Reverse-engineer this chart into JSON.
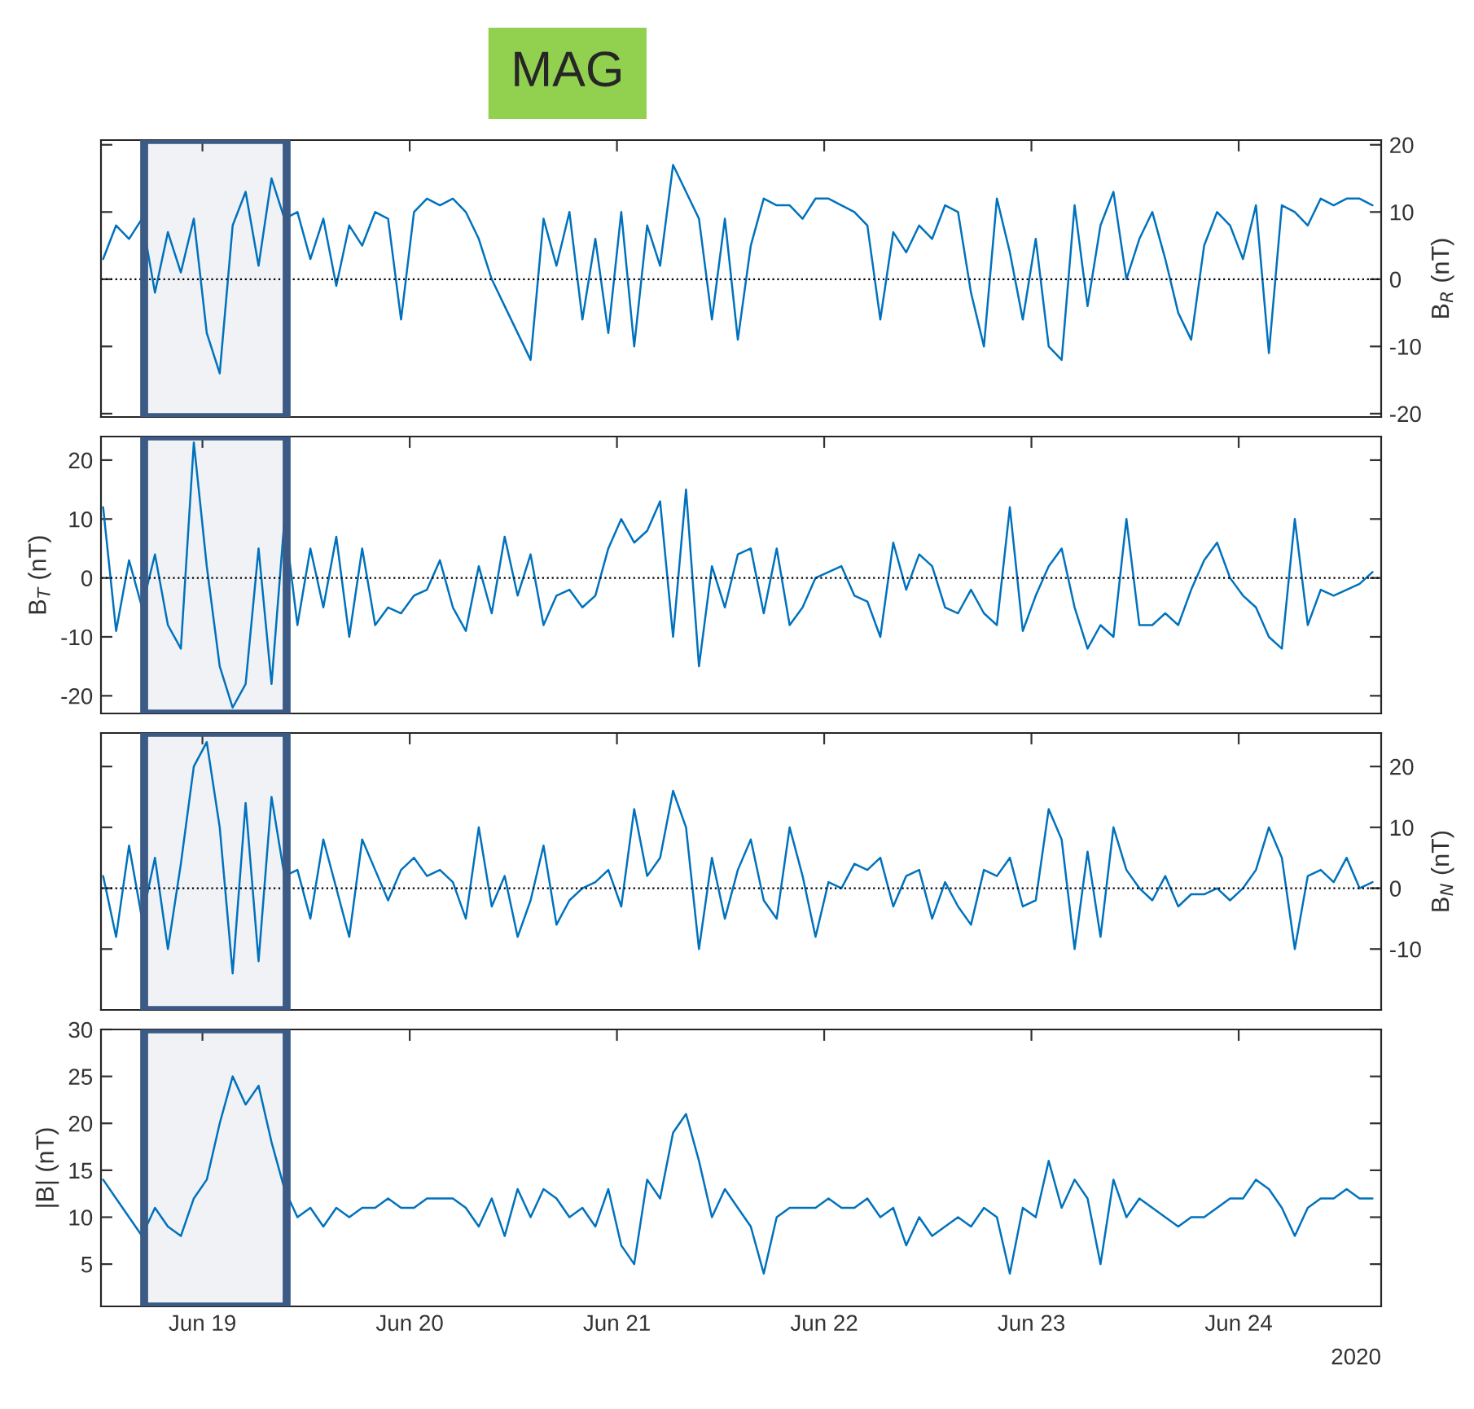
{
  "chart_data": [
    {
      "type": "line",
      "title": "MAG",
      "y2label": "B$_{R}$ (nT)",
      "tick_labels": "y",
      "grid": false,
      "legend": false,
      "xlim": [
        "2020-06-18T12:15",
        "2020-06-24T16:30"
      ],
      "xticks": [
        {
          "value": "2020-06-19",
          "label": null
        },
        {
          "value": "2020-06-20",
          "label": null
        },
        {
          "value": "2020-06-21",
          "label": null
        },
        {
          "value": "2020-06-22",
          "label": null
        },
        {
          "value": "2020-06-23",
          "label": null
        },
        {
          "value": "2020-06-24",
          "label": null
        }
      ],
      "ylim": [
        -20.5,
        20.7
      ],
      "yticks": [
        -20,
        -10,
        0,
        10,
        20
      ],
      "ref_lines": [
        {
          "axis": "y",
          "value": 0,
          "line_style": "dotted",
          "color": "#000000"
        }
      ],
      "bands": [
        {
          "axis": "x",
          "from": "2020-06-18T17:15",
          "to": "2020-06-19T09:45",
          "color": "#3b5a85"
        }
      ],
      "x": [
        "2020-06-18T12:30",
        "2020-06-18T14:00",
        "2020-06-18T15:30",
        "2020-06-18T17:00",
        "2020-06-18T18:30",
        "2020-06-18T20:00",
        "2020-06-18T21:30",
        "2020-06-18T23:00",
        "2020-06-19T00:30",
        "2020-06-19T02:00",
        "2020-06-19T03:30",
        "2020-06-19T05:00",
        "2020-06-19T06:30",
        "2020-06-19T08:00",
        "2020-06-19T09:30",
        "2020-06-19T11:00",
        "2020-06-19T12:30",
        "2020-06-19T14:00",
        "2020-06-19T15:30",
        "2020-06-19T17:00",
        "2020-06-19T18:30",
        "2020-06-19T20:00",
        "2020-06-19T21:30",
        "2020-06-19T23:00",
        "2020-06-20T00:30",
        "2020-06-20T02:00",
        "2020-06-20T03:30",
        "2020-06-20T05:00",
        "2020-06-20T06:30",
        "2020-06-20T08:00",
        "2020-06-20T09:30",
        "2020-06-20T11:00",
        "2020-06-20T12:30",
        "2020-06-20T14:00",
        "2020-06-20T15:30",
        "2020-06-20T17:00",
        "2020-06-20T18:30",
        "2020-06-20T20:00",
        "2020-06-20T21:30",
        "2020-06-20T23:00",
        "2020-06-21T00:30",
        "2020-06-21T02:00",
        "2020-06-21T03:30",
        "2020-06-21T05:00",
        "2020-06-21T06:30",
        "2020-06-21T08:00",
        "2020-06-21T09:30",
        "2020-06-21T11:00",
        "2020-06-21T12:30",
        "2020-06-21T14:00",
        "2020-06-21T15:30",
        "2020-06-21T17:00",
        "2020-06-21T18:30",
        "2020-06-21T20:00",
        "2020-06-21T21:30",
        "2020-06-21T23:00",
        "2020-06-22T00:30",
        "2020-06-22T02:00",
        "2020-06-22T03:30",
        "2020-06-22T05:00",
        "2020-06-22T06:30",
        "2020-06-22T08:00",
        "2020-06-22T09:30",
        "2020-06-22T11:00",
        "2020-06-22T12:30",
        "2020-06-22T14:00",
        "2020-06-22T15:30",
        "2020-06-22T17:00",
        "2020-06-22T18:30",
        "2020-06-22T20:00",
        "2020-06-22T21:30",
        "2020-06-22T23:00",
        "2020-06-23T00:30",
        "2020-06-23T02:00",
        "2020-06-23T03:30",
        "2020-06-23T05:00",
        "2020-06-23T06:30",
        "2020-06-23T08:00",
        "2020-06-23T09:30",
        "2020-06-23T11:00",
        "2020-06-23T12:30",
        "2020-06-23T14:00",
        "2020-06-23T15:30",
        "2020-06-23T17:00",
        "2020-06-23T18:30",
        "2020-06-23T20:00",
        "2020-06-23T21:30",
        "2020-06-23T23:00",
        "2020-06-24T00:30",
        "2020-06-24T02:00",
        "2020-06-24T03:30",
        "2020-06-24T05:00",
        "2020-06-24T06:30",
        "2020-06-24T08:00",
        "2020-06-24T09:30",
        "2020-06-24T11:00",
        "2020-06-24T12:30",
        "2020-06-24T14:00",
        "2020-06-24T15:30"
      ],
      "series": [
        {
          "color": "#0072bd",
          "values": [
            3,
            8,
            6,
            9,
            -2,
            7,
            1,
            9,
            -8,
            -14,
            8,
            13,
            2,
            15,
            9,
            10,
            3,
            9,
            -1,
            8,
            5,
            10,
            9,
            -6,
            10,
            12,
            11,
            12,
            10,
            6,
            0,
            -4,
            -8,
            -12,
            9,
            2,
            10,
            -6,
            6,
            -8,
            10,
            -10,
            8,
            2,
            17,
            13,
            9,
            -6,
            9,
            -9,
            5,
            12,
            11,
            11,
            9,
            12,
            12,
            11,
            10,
            8,
            -6,
            7,
            4,
            8,
            6,
            11,
            10,
            -2,
            -10,
            12,
            4,
            -6,
            6,
            -10,
            -12,
            11,
            -4,
            8,
            13,
            0,
            6,
            10,
            3,
            -5,
            -9,
            5,
            10,
            8,
            3,
            11,
            -11,
            11,
            10,
            8,
            12,
            11,
            12,
            12,
            11
          ]
        }
      ]
    },
    {
      "type": "line",
      "ylabel": "B$_{T}$ (nT)",
      "tick_labels": "y",
      "grid": false,
      "legend": false,
      "xlim": [
        "2020-06-18T12:15",
        "2020-06-24T16:30"
      ],
      "xticks": [
        {
          "value": "2020-06-19",
          "label": null
        },
        {
          "value": "2020-06-20",
          "label": null
        },
        {
          "value": "2020-06-21",
          "label": null
        },
        {
          "value": "2020-06-22",
          "label": null
        },
        {
          "value": "2020-06-23",
          "label": null
        },
        {
          "value": "2020-06-24",
          "label": null
        }
      ],
      "ylim": [
        -23,
        24
      ],
      "yticks": [
        -20,
        -10,
        0,
        10,
        20
      ],
      "ref_lines": [
        {
          "axis": "y",
          "value": 0,
          "line_style": "dotted",
          "color": "#000000"
        }
      ],
      "bands": [
        {
          "axis": "x",
          "from": "2020-06-18T17:15",
          "to": "2020-06-19T09:45",
          "color": "#3b5a85"
        }
      ],
      "x": [
        "2020-06-18T12:30",
        "2020-06-18T14:00",
        "2020-06-18T15:30",
        "2020-06-18T17:00",
        "2020-06-18T18:30",
        "2020-06-18T20:00",
        "2020-06-18T21:30",
        "2020-06-18T23:00",
        "2020-06-19T00:30",
        "2020-06-19T02:00",
        "2020-06-19T03:30",
        "2020-06-19T05:00",
        "2020-06-19T06:30",
        "2020-06-19T08:00",
        "2020-06-19T09:30",
        "2020-06-19T11:00",
        "2020-06-19T12:30",
        "2020-06-19T14:00",
        "2020-06-19T15:30",
        "2020-06-19T17:00",
        "2020-06-19T18:30",
        "2020-06-19T20:00",
        "2020-06-19T21:30",
        "2020-06-19T23:00",
        "2020-06-20T00:30",
        "2020-06-20T02:00",
        "2020-06-20T03:30",
        "2020-06-20T05:00",
        "2020-06-20T06:30",
        "2020-06-20T08:00",
        "2020-06-20T09:30",
        "2020-06-20T11:00",
        "2020-06-20T12:30",
        "2020-06-20T14:00",
        "2020-06-20T15:30",
        "2020-06-20T17:00",
        "2020-06-20T18:30",
        "2020-06-20T20:00",
        "2020-06-20T21:30",
        "2020-06-20T23:00",
        "2020-06-21T00:30",
        "2020-06-21T02:00",
        "2020-06-21T03:30",
        "2020-06-21T05:00",
        "2020-06-21T06:30",
        "2020-06-21T08:00",
        "2020-06-21T09:30",
        "2020-06-21T11:00",
        "2020-06-21T12:30",
        "2020-06-21T14:00",
        "2020-06-21T15:30",
        "2020-06-21T17:00",
        "2020-06-21T18:30",
        "2020-06-21T20:00",
        "2020-06-21T21:30",
        "2020-06-21T23:00",
        "2020-06-22T00:30",
        "2020-06-22T02:00",
        "2020-06-22T03:30",
        "2020-06-22T05:00",
        "2020-06-22T06:30",
        "2020-06-22T08:00",
        "2020-06-22T09:30",
        "2020-06-22T11:00",
        "2020-06-22T12:30",
        "2020-06-22T14:00",
        "2020-06-22T15:30",
        "2020-06-22T17:00",
        "2020-06-22T18:30",
        "2020-06-22T20:00",
        "2020-06-22T21:30",
        "2020-06-22T23:00",
        "2020-06-23T00:30",
        "2020-06-23T02:00",
        "2020-06-23T03:30",
        "2020-06-23T05:00",
        "2020-06-23T06:30",
        "2020-06-23T08:00",
        "2020-06-23T09:30",
        "2020-06-23T11:00",
        "2020-06-23T12:30",
        "2020-06-23T14:00",
        "2020-06-23T15:30",
        "2020-06-23T17:00",
        "2020-06-23T18:30",
        "2020-06-23T20:00",
        "2020-06-23T21:30",
        "2020-06-23T23:00",
        "2020-06-24T00:30",
        "2020-06-24T02:00",
        "2020-06-24T03:30",
        "2020-06-24T05:00",
        "2020-06-24T06:30",
        "2020-06-24T08:00",
        "2020-06-24T09:30",
        "2020-06-24T11:00",
        "2020-06-24T12:30",
        "2020-06-24T14:00",
        "2020-06-24T15:30"
      ],
      "series": [
        {
          "color": "#0072bd",
          "values": [
            12,
            -9,
            3,
            -5,
            4,
            -8,
            -12,
            23,
            2,
            -15,
            -22,
            -18,
            5,
            -18,
            10,
            -8,
            5,
            -5,
            7,
            -10,
            5,
            -8,
            -5,
            -6,
            -3,
            -2,
            3,
            -5,
            -9,
            2,
            -6,
            7,
            -3,
            4,
            -8,
            -3,
            -2,
            -5,
            -3,
            5,
            10,
            6,
            8,
            13,
            -10,
            15,
            -15,
            2,
            -5,
            4,
            5,
            -6,
            5,
            -8,
            -5,
            0,
            1,
            2,
            -3,
            -4,
            -10,
            6,
            -2,
            4,
            2,
            -5,
            -6,
            -2,
            -6,
            -8,
            12,
            -9,
            -3,
            2,
            5,
            -5,
            -12,
            -8,
            -10,
            10,
            -8,
            -8,
            -6,
            -8,
            -2,
            3,
            6,
            0,
            -3,
            -5,
            -10,
            -12,
            10,
            -8,
            -2,
            -3,
            -2,
            -1,
            1
          ]
        }
      ]
    },
    {
      "type": "line",
      "y2label": "B$_{N}$ (nT)",
      "tick_labels": "y",
      "grid": false,
      "legend": false,
      "xlim": [
        "2020-06-18T12:15",
        "2020-06-24T16:30"
      ],
      "xticks": [
        {
          "value": "2020-06-19",
          "label": null
        },
        {
          "value": "2020-06-20",
          "label": null
        },
        {
          "value": "2020-06-21",
          "label": null
        },
        {
          "value": "2020-06-22",
          "label": null
        },
        {
          "value": "2020-06-23",
          "label": null
        },
        {
          "value": "2020-06-24",
          "label": null
        }
      ],
      "ylim": [
        -20,
        25.5
      ],
      "yticks": [
        -10,
        0,
        10,
        20
      ],
      "ref_lines": [
        {
          "axis": "y",
          "value": 0,
          "line_style": "dotted",
          "color": "#000000"
        }
      ],
      "bands": [
        {
          "axis": "x",
          "from": "2020-06-18T17:15",
          "to": "2020-06-19T09:45",
          "color": "#3b5a85"
        }
      ],
      "x": [
        "2020-06-18T12:30",
        "2020-06-18T14:00",
        "2020-06-18T15:30",
        "2020-06-18T17:00",
        "2020-06-18T18:30",
        "2020-06-18T20:00",
        "2020-06-18T21:30",
        "2020-06-18T23:00",
        "2020-06-19T00:30",
        "2020-06-19T02:00",
        "2020-06-19T03:30",
        "2020-06-19T05:00",
        "2020-06-19T06:30",
        "2020-06-19T08:00",
        "2020-06-19T09:30",
        "2020-06-19T11:00",
        "2020-06-19T12:30",
        "2020-06-19T14:00",
        "2020-06-19T15:30",
        "2020-06-19T17:00",
        "2020-06-19T18:30",
        "2020-06-19T20:00",
        "2020-06-19T21:30",
        "2020-06-19T23:00",
        "2020-06-20T00:30",
        "2020-06-20T02:00",
        "2020-06-20T03:30",
        "2020-06-20T05:00",
        "2020-06-20T06:30",
        "2020-06-20T08:00",
        "2020-06-20T09:30",
        "2020-06-20T11:00",
        "2020-06-20T12:30",
        "2020-06-20T14:00",
        "2020-06-20T15:30",
        "2020-06-20T17:00",
        "2020-06-20T18:30",
        "2020-06-20T20:00",
        "2020-06-20T21:30",
        "2020-06-20T23:00",
        "2020-06-21T00:30",
        "2020-06-21T02:00",
        "2020-06-21T03:30",
        "2020-06-21T05:00",
        "2020-06-21T06:30",
        "2020-06-21T08:00",
        "2020-06-21T09:30",
        "2020-06-21T11:00",
        "2020-06-21T12:30",
        "2020-06-21T14:00",
        "2020-06-21T15:30",
        "2020-06-21T17:00",
        "2020-06-21T18:30",
        "2020-06-21T20:00",
        "2020-06-21T21:30",
        "2020-06-21T23:00",
        "2020-06-22T00:30",
        "2020-06-22T02:00",
        "2020-06-22T03:30",
        "2020-06-22T05:00",
        "2020-06-22T06:30",
        "2020-06-22T08:00",
        "2020-06-22T09:30",
        "2020-06-22T11:00",
        "2020-06-22T12:30",
        "2020-06-22T14:00",
        "2020-06-22T15:30",
        "2020-06-22T17:00",
        "2020-06-22T18:30",
        "2020-06-22T20:00",
        "2020-06-22T21:30",
        "2020-06-22T23:00",
        "2020-06-23T00:30",
        "2020-06-23T02:00",
        "2020-06-23T03:30",
        "2020-06-23T05:00",
        "2020-06-23T06:30",
        "2020-06-23T08:00",
        "2020-06-23T09:30",
        "2020-06-23T11:00",
        "2020-06-23T12:30",
        "2020-06-23T14:00",
        "2020-06-23T15:30",
        "2020-06-23T17:00",
        "2020-06-23T18:30",
        "2020-06-23T20:00",
        "2020-06-23T21:30",
        "2020-06-23T23:00",
        "2020-06-24T00:30",
        "2020-06-24T02:00",
        "2020-06-24T03:30",
        "2020-06-24T05:00",
        "2020-06-24T06:30",
        "2020-06-24T08:00",
        "2020-06-24T09:30",
        "2020-06-24T11:00",
        "2020-06-24T12:30",
        "2020-06-24T14:00",
        "2020-06-24T15:30"
      ],
      "series": [
        {
          "color": "#0072bd",
          "values": [
            2,
            -8,
            7,
            -5,
            5,
            -10,
            4,
            20,
            24,
            10,
            -14,
            14,
            -12,
            15,
            2,
            3,
            -5,
            8,
            0,
            -8,
            8,
            3,
            -2,
            3,
            5,
            2,
            3,
            1,
            -5,
            10,
            -3,
            2,
            -8,
            -2,
            7,
            -6,
            -2,
            0,
            1,
            3,
            -3,
            13,
            2,
            5,
            16,
            10,
            -10,
            5,
            -5,
            3,
            8,
            -2,
            -5,
            10,
            2,
            -8,
            1,
            0,
            4,
            3,
            5,
            -3,
            2,
            3,
            -5,
            1,
            -3,
            -6,
            3,
            2,
            5,
            -3,
            -2,
            13,
            8,
            -10,
            6,
            -8,
            10,
            3,
            0,
            -2,
            2,
            -3,
            -1,
            -1,
            0,
            -2,
            0,
            3,
            10,
            5,
            -10,
            2,
            3,
            1,
            5,
            0,
            1
          ]
        }
      ]
    },
    {
      "type": "line",
      "ylabel": "|B| (nT)",
      "grid": false,
      "legend": false,
      "annotations": [
        "2020"
      ],
      "xlim": [
        "2020-06-18T12:15",
        "2020-06-24T16:30"
      ],
      "xticks": [
        {
          "value": "2020-06-19",
          "label": "Jun 19"
        },
        {
          "value": "2020-06-20",
          "label": "Jun 20"
        },
        {
          "value": "2020-06-21",
          "label": "Jun 21"
        },
        {
          "value": "2020-06-22",
          "label": "Jun 22"
        },
        {
          "value": "2020-06-23",
          "label": "Jun 23"
        },
        {
          "value": "2020-06-24",
          "label": "Jun 24"
        }
      ],
      "ylim": [
        0.5,
        30
      ],
      "yticks": [
        5,
        10,
        15,
        20,
        25,
        30
      ],
      "bands": [
        {
          "axis": "x",
          "from": "2020-06-18T17:15",
          "to": "2020-06-19T09:45",
          "color": "#3b5a85"
        }
      ],
      "x": [
        "2020-06-18T12:30",
        "2020-06-18T14:00",
        "2020-06-18T15:30",
        "2020-06-18T17:00",
        "2020-06-18T18:30",
        "2020-06-18T20:00",
        "2020-06-18T21:30",
        "2020-06-18T23:00",
        "2020-06-19T00:30",
        "2020-06-19T02:00",
        "2020-06-19T03:30",
        "2020-06-19T05:00",
        "2020-06-19T06:30",
        "2020-06-19T08:00",
        "2020-06-19T09:30",
        "2020-06-19T11:00",
        "2020-06-19T12:30",
        "2020-06-19T14:00",
        "2020-06-19T15:30",
        "2020-06-19T17:00",
        "2020-06-19T18:30",
        "2020-06-19T20:00",
        "2020-06-19T21:30",
        "2020-06-19T23:00",
        "2020-06-20T00:30",
        "2020-06-20T02:00",
        "2020-06-20T03:30",
        "2020-06-20T05:00",
        "2020-06-20T06:30",
        "2020-06-20T08:00",
        "2020-06-20T09:30",
        "2020-06-20T11:00",
        "2020-06-20T12:30",
        "2020-06-20T14:00",
        "2020-06-20T15:30",
        "2020-06-20T17:00",
        "2020-06-20T18:30",
        "2020-06-20T20:00",
        "2020-06-20T21:30",
        "2020-06-20T23:00",
        "2020-06-21T00:30",
        "2020-06-21T02:00",
        "2020-06-21T03:30",
        "2020-06-21T05:00",
        "2020-06-21T06:30",
        "2020-06-21T08:00",
        "2020-06-21T09:30",
        "2020-06-21T11:00",
        "2020-06-21T12:30",
        "2020-06-21T14:00",
        "2020-06-21T15:30",
        "2020-06-21T17:00",
        "2020-06-21T18:30",
        "2020-06-21T20:00",
        "2020-06-21T21:30",
        "2020-06-21T23:00",
        "2020-06-22T00:30",
        "2020-06-22T02:00",
        "2020-06-22T03:30",
        "2020-06-22T05:00",
        "2020-06-22T06:30",
        "2020-06-22T08:00",
        "2020-06-22T09:30",
        "2020-06-22T11:00",
        "2020-06-22T12:30",
        "2020-06-22T14:00",
        "2020-06-22T15:30",
        "2020-06-22T17:00",
        "2020-06-22T18:30",
        "2020-06-22T20:00",
        "2020-06-22T21:30",
        "2020-06-22T23:00",
        "2020-06-23T00:30",
        "2020-06-23T02:00",
        "2020-06-23T03:30",
        "2020-06-23T05:00",
        "2020-06-23T06:30",
        "2020-06-23T08:00",
        "2020-06-23T09:30",
        "2020-06-23T11:00",
        "2020-06-23T12:30",
        "2020-06-23T14:00",
        "2020-06-23T15:30",
        "2020-06-23T17:00",
        "2020-06-23T18:30",
        "2020-06-23T20:00",
        "2020-06-23T21:30",
        "2020-06-23T23:00",
        "2020-06-24T00:30",
        "2020-06-24T02:00",
        "2020-06-24T03:30",
        "2020-06-24T05:00",
        "2020-06-24T06:30",
        "2020-06-24T08:00",
        "2020-06-24T09:30",
        "2020-06-24T11:00",
        "2020-06-24T12:30",
        "2020-06-24T14:00",
        "2020-06-24T15:30"
      ],
      "series": [
        {
          "color": "#0072bd",
          "values": [
            14,
            12,
            10,
            8,
            11,
            9,
            8,
            12,
            14,
            20,
            25,
            22,
            24,
            18,
            13,
            10,
            11,
            9,
            11,
            10,
            11,
            11,
            12,
            11,
            11,
            12,
            12,
            12,
            11,
            9,
            12,
            8,
            13,
            10,
            13,
            12,
            10,
            11,
            9,
            13,
            7,
            5,
            14,
            12,
            19,
            21,
            16,
            10,
            13,
            11,
            9,
            4,
            10,
            11,
            11,
            11,
            12,
            11,
            11,
            12,
            10,
            11,
            7,
            10,
            8,
            9,
            10,
            9,
            11,
            10,
            4,
            11,
            10,
            16,
            11,
            14,
            12,
            5,
            14,
            10,
            12,
            11,
            10,
            9,
            10,
            10,
            11,
            12,
            12,
            14,
            13,
            11,
            8,
            11,
            12,
            12,
            13,
            12,
            12
          ]
        }
      ]
    }
  ]
}
